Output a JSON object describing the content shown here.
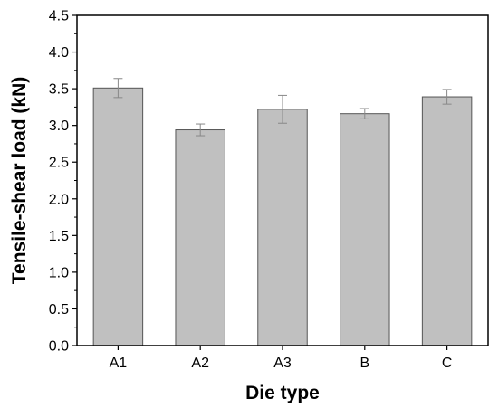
{
  "chart_data": {
    "type": "bar",
    "title": "",
    "xlabel": "Die type",
    "ylabel": "Tensile-shear load (kN)",
    "categories": [
      "A1",
      "A2",
      "A3",
      "B",
      "C"
    ],
    "values": [
      3.51,
      2.94,
      3.22,
      3.16,
      3.39
    ],
    "errors": [
      0.13,
      0.08,
      0.19,
      0.07,
      0.1
    ],
    "ylim": [
      0,
      4.5
    ],
    "yticks": [
      "0.0",
      "0.5",
      "1.0",
      "1.5",
      "2.0",
      "2.5",
      "3.0",
      "3.5",
      "4.0",
      "4.5"
    ],
    "grid": false,
    "bar_color": "#c0c0c0",
    "bar_edge_color": "#555555",
    "error_color": "#888888"
  }
}
